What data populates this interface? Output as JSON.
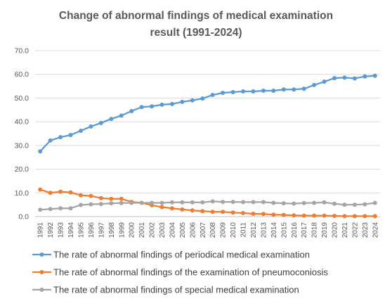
{
  "chart_data": {
    "type": "line",
    "title": "Change of abnormal findings of medical examination result (1991-2024)",
    "title_lines": [
      "Change of abnormal findings of medical examination",
      "result (1991-2024)"
    ],
    "xlabel": "",
    "ylabel": "",
    "ylim": [
      0,
      70
    ],
    "yticks": [
      "0.0",
      "10.0",
      "20.0",
      "30.0",
      "40.0",
      "50.0",
      "60.0",
      "70.0"
    ],
    "grid": true,
    "legend_position": "bottom",
    "x": [
      "1991",
      "1992",
      "1993",
      "1994",
      "1995",
      "1996",
      "1997",
      "1998",
      "1999",
      "2000",
      "2001",
      "2002",
      "2003",
      "2004",
      "2005",
      "2006",
      "2007",
      "2008",
      "2009",
      "2010",
      "2011",
      "2012",
      "2013",
      "2014",
      "2015",
      "2016",
      "2017",
      "2018",
      "2019",
      "2020",
      "2021",
      "2022",
      "2023",
      "2024"
    ],
    "series": [
      {
        "name": "The rate of abnormal findings of periodical medical examination",
        "color": "#5B9BD5",
        "values": [
          27.5,
          32.1,
          33.5,
          34.4,
          36.2,
          38.0,
          39.5,
          41.2,
          42.6,
          44.5,
          46.2,
          46.5,
          47.2,
          47.5,
          48.4,
          49.0,
          49.8,
          51.3,
          52.2,
          52.5,
          52.8,
          52.8,
          53.1,
          53.1,
          53.6,
          53.6,
          53.9,
          55.5,
          56.9,
          58.4,
          58.6,
          58.3,
          59.1,
          59.4
        ]
      },
      {
        "name": "The rate of abnormal findings of the examination of pneumoconiosis",
        "color": "#ED7D31",
        "values": [
          11.4,
          10.0,
          10.5,
          10.2,
          9.0,
          8.7,
          7.8,
          7.5,
          7.5,
          6.2,
          5.8,
          4.8,
          4.0,
          3.5,
          3.0,
          2.6,
          2.3,
          2.0,
          2.0,
          1.7,
          1.5,
          1.2,
          1.1,
          0.8,
          0.7,
          0.5,
          0.4,
          0.4,
          0.4,
          0.3,
          0.2,
          0.2,
          0.2,
          0.2
        ]
      },
      {
        "name": "The rate of abnormal findings of special medical examination",
        "color": "#A5A5A5",
        "values": [
          2.9,
          3.2,
          3.5,
          3.5,
          4.9,
          5.2,
          5.3,
          5.6,
          5.7,
          5.8,
          5.8,
          5.8,
          5.8,
          6.0,
          6.0,
          6.0,
          6.0,
          6.4,
          6.2,
          6.2,
          6.1,
          6.1,
          6.1,
          5.8,
          5.6,
          5.5,
          5.7,
          5.8,
          6.0,
          5.4,
          5.0,
          5.0,
          5.2,
          5.8
        ]
      }
    ]
  },
  "style": {
    "grid_color": "#D9D9D9",
    "axis_color": "#BFBFBF",
    "text_color": "#595959"
  }
}
